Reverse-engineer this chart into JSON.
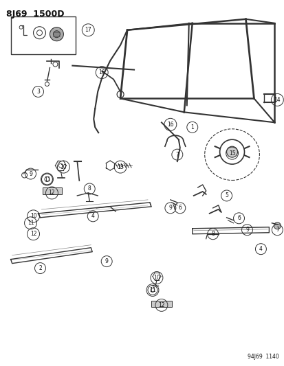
{
  "title": "8J69  1500D",
  "footnote": "94J69  1140",
  "bg_color": "#ffffff",
  "line_color": "#333333",
  "text_color": "#111111",
  "figsize": [
    4.14,
    5.33
  ],
  "dpi": 100
}
